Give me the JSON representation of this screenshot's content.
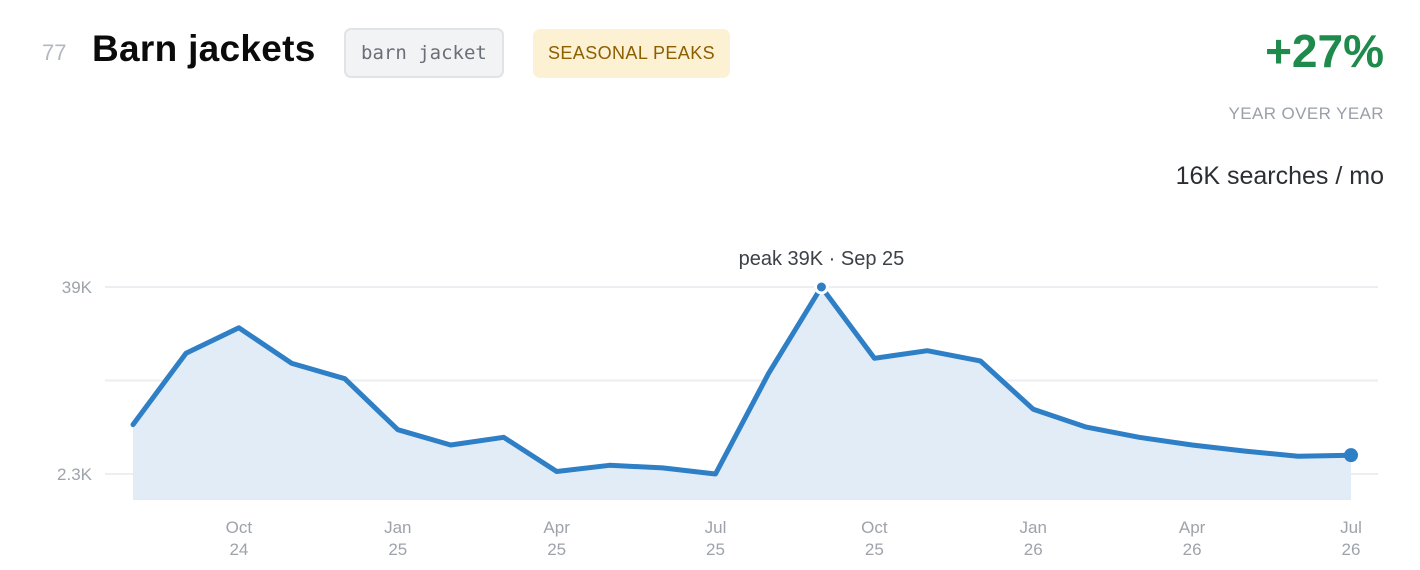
{
  "header": {
    "rank": "77",
    "title": "Barn jackets",
    "keyword": "barn jacket",
    "badge": "SEASONAL PEAKS",
    "yoy_value": "+27%",
    "yoy_label": "YEAR OVER YEAR",
    "searches": "16K searches / mo"
  },
  "colors": {
    "line": "#2e7fc5",
    "area": "#e1ecf7",
    "grid": "#eceef1",
    "positive": "#1e8a4c",
    "badge_bg": "#fcf1d2",
    "badge_text": "#8c5f00"
  },
  "chart_data": {
    "type": "area",
    "x": [
      "Aug 24",
      "Sep 24",
      "Oct 24",
      "Nov 24",
      "Dec 24",
      "Jan 25",
      "Feb 25",
      "Mar 25",
      "Apr 25",
      "May 25",
      "Jun 25",
      "Jul 25",
      "Aug 25",
      "Sep 25",
      "Oct 25",
      "Nov 25",
      "Dec 25",
      "Jan 26",
      "Feb 26",
      "Mar 26",
      "Apr 26",
      "May 26",
      "Jun 26",
      "Jul 26"
    ],
    "values": [
      12000,
      26000,
      31000,
      24000,
      21000,
      11000,
      8000,
      9500,
      2800,
      4000,
      3500,
      2300,
      22000,
      39000,
      25000,
      26500,
      24500,
      15000,
      11500,
      9500,
      8000,
      6800,
      5800,
      6000
    ],
    "y_ticks": [
      {
        "value": 39000,
        "label": "39K"
      },
      {
        "value": 2300,
        "label": "2.3K"
      }
    ],
    "x_ticks": [
      {
        "index": 2,
        "month": "Oct",
        "year": "24"
      },
      {
        "index": 5,
        "month": "Jan",
        "year": "25"
      },
      {
        "index": 8,
        "month": "Apr",
        "year": "25"
      },
      {
        "index": 11,
        "month": "Jul",
        "year": "25"
      },
      {
        "index": 14,
        "month": "Oct",
        "year": "25"
      },
      {
        "index": 17,
        "month": "Jan",
        "year": "26"
      },
      {
        "index": 20,
        "month": "Apr",
        "year": "26"
      },
      {
        "index": 23,
        "month": "Jul",
        "year": "26"
      }
    ],
    "ylim": [
      -2800,
      39000
    ],
    "grid": true,
    "peak_index": 13,
    "peak_label": "peak 39K · Sep 25"
  }
}
